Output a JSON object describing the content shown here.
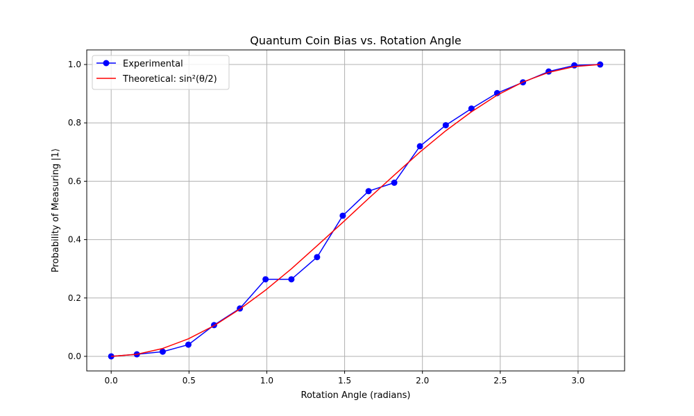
{
  "chart_data": {
    "type": "line",
    "title": "Quantum Coin Bias vs. Rotation Angle",
    "xlabel": "Rotation Angle (radians)",
    "ylabel": "Probability of Measuring |1⟩",
    "xlim": [
      -0.157,
      3.299
    ],
    "ylim": [
      -0.05,
      1.05
    ],
    "x_ticks": [
      0.0,
      0.5,
      1.0,
      1.5,
      2.0,
      2.5,
      3.0
    ],
    "x_tick_labels": [
      "0.0",
      "0.5",
      "1.0",
      "1.5",
      "2.0",
      "2.5",
      "3.0"
    ],
    "y_ticks": [
      0.0,
      0.2,
      0.4,
      0.6,
      0.8,
      1.0
    ],
    "y_tick_labels": [
      "0.0",
      "0.2",
      "0.4",
      "0.6",
      "0.8",
      "1.0"
    ],
    "grid": true,
    "legend_position": "top-left",
    "series": [
      {
        "name": "Experimental",
        "color": "#0000ff",
        "marker": "circle",
        "x": [
          0.0,
          0.165,
          0.331,
          0.496,
          0.661,
          0.827,
          0.992,
          1.158,
          1.323,
          1.488,
          1.654,
          1.819,
          1.984,
          2.15,
          2.315,
          2.48,
          2.646,
          2.811,
          2.976,
          3.142
        ],
        "y": [
          0.0,
          0.007,
          0.016,
          0.04,
          0.107,
          0.164,
          0.264,
          0.264,
          0.34,
          0.482,
          0.566,
          0.595,
          0.72,
          0.792,
          0.849,
          0.902,
          0.939,
          0.976,
          0.997,
          1.0
        ]
      },
      {
        "name": "Theoretical: sin²(θ/2)",
        "color": "#ff0000",
        "marker": "none",
        "x": [
          0.0,
          0.165,
          0.331,
          0.496,
          0.661,
          0.827,
          0.992,
          1.158,
          1.323,
          1.488,
          1.654,
          1.819,
          1.984,
          2.15,
          2.315,
          2.48,
          2.646,
          2.811,
          2.976,
          3.142
        ],
        "y": [
          0.0,
          0.007,
          0.027,
          0.06,
          0.105,
          0.162,
          0.227,
          0.3,
          0.379,
          0.459,
          0.541,
          0.621,
          0.7,
          0.773,
          0.838,
          0.895,
          0.94,
          0.973,
          0.993,
          1.0
        ]
      }
    ]
  }
}
